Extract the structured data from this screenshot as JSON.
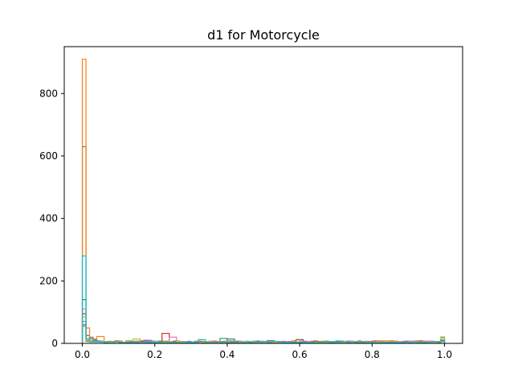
{
  "chart_data": {
    "type": "histogram",
    "title": "d1 for Motorcycle",
    "xlabel": "",
    "ylabel": "",
    "xlim": [
      -0.05,
      1.05
    ],
    "ylim": [
      0,
      950
    ],
    "x_ticks": [
      0.0,
      0.2,
      0.4,
      0.6,
      0.8,
      1.0
    ],
    "x_tick_labels": [
      "0.0",
      "0.2",
      "0.4",
      "0.6",
      "0.8",
      "1.0"
    ],
    "y_ticks": [
      0,
      200,
      400,
      600,
      800
    ],
    "y_tick_labels": [
      "0",
      "200",
      "400",
      "600",
      "800"
    ],
    "grid": false,
    "legend": "none",
    "histtype": "step",
    "series_colors": [
      "#1f77b4",
      "#ff7f0e",
      "#2ca02c",
      "#d62728",
      "#9467bd",
      "#8c564b",
      "#e377c2",
      "#7f7f7f",
      "#bcbd22",
      "#17becf"
    ],
    "series": [
      {
        "peak_at_zero": 630,
        "tail_level": 6,
        "bump": {
          "x": 0.41,
          "y": 14
        },
        "end_value": 8
      },
      {
        "peak_at_zero": 910,
        "tail_level": 7,
        "bump": {
          "x": 0.05,
          "y": 22
        },
        "end_value": 12
      },
      {
        "peak_at_zero": 140,
        "tail_level": 5,
        "bump": {
          "x": 0.39,
          "y": 16
        },
        "end_value": 20
      },
      {
        "peak_at_zero": 95,
        "tail_level": 6,
        "bump": {
          "x": 0.23,
          "y": 32
        },
        "end_value": 10
      },
      {
        "peak_at_zero": 70,
        "tail_level": 5,
        "bump": {
          "x": 0.18,
          "y": 10
        },
        "end_value": 6
      },
      {
        "peak_at_zero": 60,
        "tail_level": 4,
        "bump": {
          "x": 0.6,
          "y": 12
        },
        "end_value": 9
      },
      {
        "peak_at_zero": 110,
        "tail_level": 6,
        "bump": {
          "x": 0.25,
          "y": 20
        },
        "end_value": 8
      },
      {
        "peak_at_zero": 55,
        "tail_level": 4,
        "bump": {
          "x": 0.52,
          "y": 9
        },
        "end_value": 7
      },
      {
        "peak_at_zero": 85,
        "tail_level": 5,
        "bump": {
          "x": 0.15,
          "y": 14
        },
        "end_value": 18
      },
      {
        "peak_at_zero": 280,
        "tail_level": 5,
        "bump": {
          "x": 0.33,
          "y": 12
        },
        "end_value": 11
      }
    ]
  }
}
